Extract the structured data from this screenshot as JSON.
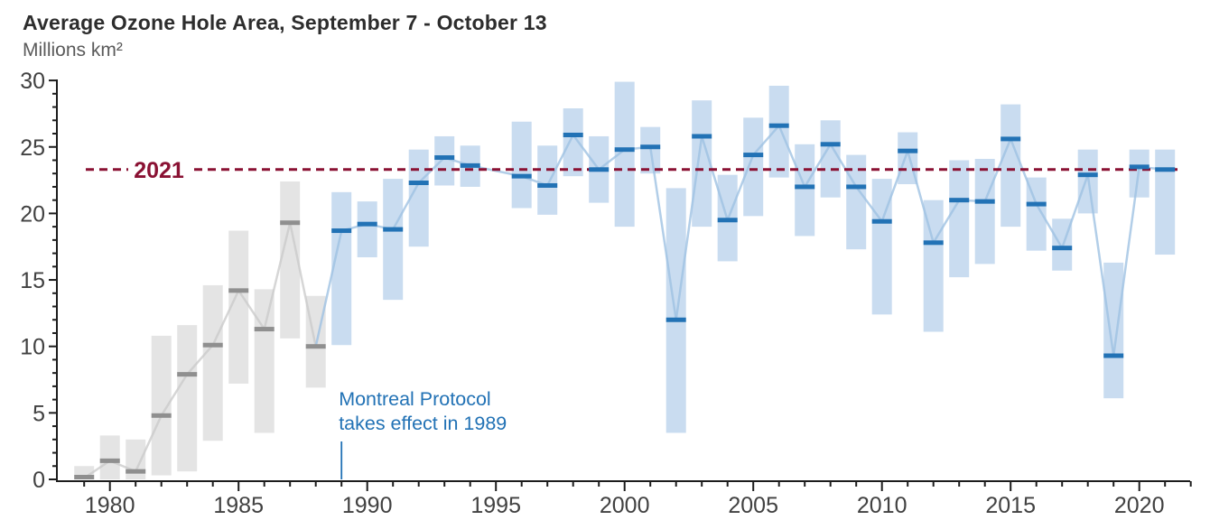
{
  "page": {
    "title": "Average Ozone Hole Area, September 7 - October 13",
    "subtitle": "Millions km²"
  },
  "chart_data": {
    "type": "bar",
    "subtype": "range-bars-with-mean-markers-and-line",
    "title": "Average Ozone Hole Area, September 7 - October 13",
    "ylabel": "Millions km²",
    "xlabel": "",
    "ylim": [
      0,
      30
    ],
    "xlim": [
      1978.5,
      2022.3
    ],
    "grid": false,
    "legend": false,
    "y_ticks_major": [
      0,
      5,
      10,
      15,
      20,
      25,
      30
    ],
    "y_tick_minor_step": 1,
    "x_tick_labels": [
      1980,
      1985,
      1990,
      1995,
      2000,
      2005,
      2010,
      2015,
      2020
    ],
    "x_tick_minor_range": [
      1979,
      2022
    ],
    "reference_line": {
      "value": 23.3,
      "label": "2021"
    },
    "annotation": {
      "line1": "Montreal Protocol",
      "line2": "takes effect in 1989",
      "at_year": 1989
    },
    "colors": {
      "pre_bar": "#e4e4e4",
      "pre_mean": "#8f8f8f",
      "pre_line": "#cccccc",
      "post_bar": "#c9dcf0",
      "post_mean": "#2272b5",
      "post_line": "#9fc2e3",
      "reference": "#8a1133",
      "annotation_text": "#2272b5",
      "axis": "#1c1c1c",
      "tick_label": "#414141"
    },
    "series": [
      {
        "year": 1979,
        "min": 0.0,
        "max": 1.0,
        "mean": 0.1,
        "era": "pre"
      },
      {
        "year": 1980,
        "min": 0.0,
        "max": 3.3,
        "mean": 1.4,
        "era": "pre"
      },
      {
        "year": 1981,
        "min": 0.0,
        "max": 3.0,
        "mean": 0.6,
        "era": "pre"
      },
      {
        "year": 1982,
        "min": 0.3,
        "max": 10.8,
        "mean": 4.8,
        "era": "pre"
      },
      {
        "year": 1983,
        "min": 0.6,
        "max": 11.6,
        "mean": 7.9,
        "era": "pre"
      },
      {
        "year": 1984,
        "min": 2.9,
        "max": 14.6,
        "mean": 10.1,
        "era": "pre"
      },
      {
        "year": 1985,
        "min": 7.2,
        "max": 18.7,
        "mean": 14.2,
        "era": "pre"
      },
      {
        "year": 1986,
        "min": 3.5,
        "max": 14.3,
        "mean": 11.3,
        "era": "pre"
      },
      {
        "year": 1987,
        "min": 10.6,
        "max": 22.4,
        "mean": 19.3,
        "era": "pre"
      },
      {
        "year": 1988,
        "min": 6.9,
        "max": 13.8,
        "mean": 10.0,
        "era": "pre"
      },
      {
        "year": 1989,
        "min": 10.1,
        "max": 21.6,
        "mean": 18.7,
        "era": "post"
      },
      {
        "year": 1990,
        "min": 16.7,
        "max": 20.9,
        "mean": 19.2,
        "era": "post"
      },
      {
        "year": 1991,
        "min": 13.5,
        "max": 22.6,
        "mean": 18.8,
        "era": "post"
      },
      {
        "year": 1992,
        "min": 17.5,
        "max": 24.8,
        "mean": 22.3,
        "era": "post"
      },
      {
        "year": 1993,
        "min": 22.1,
        "max": 25.8,
        "mean": 24.2,
        "era": "post"
      },
      {
        "year": 1994,
        "min": 22.0,
        "max": 25.1,
        "mean": 23.6,
        "era": "post"
      },
      {
        "year": 1995,
        "min": null,
        "max": null,
        "mean": null,
        "era": "post"
      },
      {
        "year": 1996,
        "min": 20.4,
        "max": 26.9,
        "mean": 22.8,
        "era": "post"
      },
      {
        "year": 1997,
        "min": 19.9,
        "max": 25.1,
        "mean": 22.1,
        "era": "post"
      },
      {
        "year": 1998,
        "min": 22.8,
        "max": 27.9,
        "mean": 25.9,
        "era": "post"
      },
      {
        "year": 1999,
        "min": 20.8,
        "max": 25.8,
        "mean": 23.3,
        "era": "post"
      },
      {
        "year": 2000,
        "min": 19.0,
        "max": 29.9,
        "mean": 24.8,
        "era": "post"
      },
      {
        "year": 2001,
        "min": 23.0,
        "max": 26.5,
        "mean": 25.0,
        "era": "post"
      },
      {
        "year": 2002,
        "min": 3.5,
        "max": 21.9,
        "mean": 12.0,
        "era": "post"
      },
      {
        "year": 2003,
        "min": 19.0,
        "max": 28.5,
        "mean": 25.8,
        "era": "post"
      },
      {
        "year": 2004,
        "min": 16.4,
        "max": 22.9,
        "mean": 19.5,
        "era": "post"
      },
      {
        "year": 2005,
        "min": 19.8,
        "max": 27.2,
        "mean": 24.4,
        "era": "post"
      },
      {
        "year": 2006,
        "min": 22.7,
        "max": 29.6,
        "mean": 26.6,
        "era": "post"
      },
      {
        "year": 2007,
        "min": 18.3,
        "max": 25.2,
        "mean": 22.0,
        "era": "post"
      },
      {
        "year": 2008,
        "min": 21.2,
        "max": 27.0,
        "mean": 25.2,
        "era": "post"
      },
      {
        "year": 2009,
        "min": 17.3,
        "max": 24.4,
        "mean": 22.0,
        "era": "post"
      },
      {
        "year": 2010,
        "min": 12.4,
        "max": 22.6,
        "mean": 19.4,
        "era": "post"
      },
      {
        "year": 2011,
        "min": 22.2,
        "max": 26.1,
        "mean": 24.7,
        "era": "post"
      },
      {
        "year": 2012,
        "min": 11.1,
        "max": 21.0,
        "mean": 17.8,
        "era": "post"
      },
      {
        "year": 2013,
        "min": 15.2,
        "max": 24.0,
        "mean": 21.0,
        "era": "post"
      },
      {
        "year": 2014,
        "min": 16.2,
        "max": 24.1,
        "mean": 20.9,
        "era": "post"
      },
      {
        "year": 2015,
        "min": 19.0,
        "max": 28.2,
        "mean": 25.6,
        "era": "post"
      },
      {
        "year": 2016,
        "min": 17.2,
        "max": 22.7,
        "mean": 20.7,
        "era": "post"
      },
      {
        "year": 2017,
        "min": 15.7,
        "max": 19.6,
        "mean": 17.4,
        "era": "post"
      },
      {
        "year": 2018,
        "min": 20.0,
        "max": 24.8,
        "mean": 22.9,
        "era": "post"
      },
      {
        "year": 2019,
        "min": 6.1,
        "max": 16.3,
        "mean": 9.3,
        "era": "post"
      },
      {
        "year": 2020,
        "min": 21.2,
        "max": 24.8,
        "mean": 23.5,
        "era": "post"
      },
      {
        "year": 2021,
        "min": 16.9,
        "max": 24.8,
        "mean": 23.3,
        "era": "post"
      }
    ]
  }
}
